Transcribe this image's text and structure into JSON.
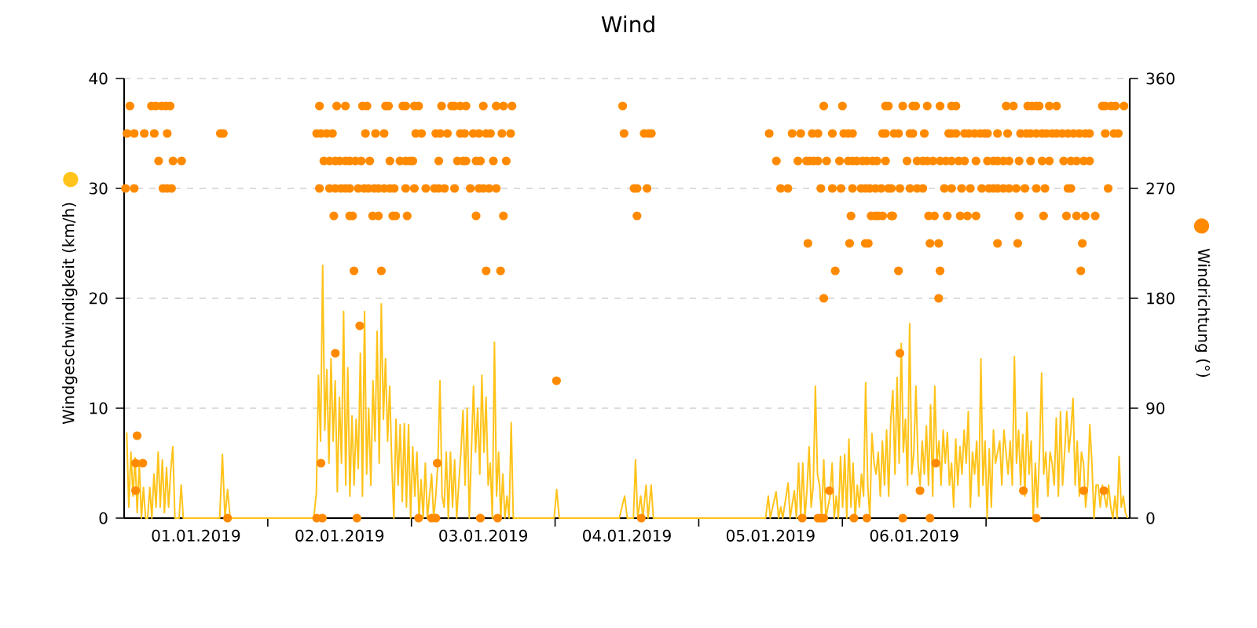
{
  "chart_data": {
    "type": "line",
    "title": "Wind",
    "ylabel": "Windgeschwindigkeit (km/h)",
    "y2label": "Windrichtung (°)",
    "xlim": [
      "2019-01-01",
      "2019-01-08"
    ],
    "xticks": [
      {
        "value": "2019-01-01T12:00",
        "label": "01.01.2019"
      },
      {
        "value": "2019-01-02",
        "label": null
      },
      {
        "value": "2019-01-02T12:00",
        "label": "02.01.2019"
      },
      {
        "value": "2019-01-03",
        "label": null
      },
      {
        "value": "2019-01-03T12:00",
        "label": "03.01.2019"
      },
      {
        "value": "2019-01-04",
        "label": null
      },
      {
        "value": "2019-01-04T12:00",
        "label": "04.01.2019"
      },
      {
        "value": "2019-01-05",
        "label": null
      },
      {
        "value": "2019-01-05T12:00",
        "label": "05.01.2019"
      },
      {
        "value": "2019-01-06",
        "label": null
      },
      {
        "value": "2019-01-06T12:00",
        "label": "06.01.2019"
      },
      {
        "value": "2019-01-07",
        "label": null
      }
    ],
    "ylim": [
      0,
      40
    ],
    "yticks": [
      0,
      10,
      20,
      30,
      40
    ],
    "y2lim": [
      0,
      360
    ],
    "y2ticks": [
      0,
      90,
      180,
      270,
      360
    ],
    "grid": "y",
    "series": [
      {
        "color": "#ffc31a",
        "marker": "none",
        "line_style": "solid",
        "x": [
          "2019-01-01T00:26",
          "2019-01-01T00:47",
          "2019-01-01T01:08",
          "2019-01-01T01:29",
          "2019-01-01T01:50",
          "2019-01-01T02:11",
          "2019-01-01T02:32",
          "2019-01-01T02:53",
          "2019-01-01T03:14",
          "2019-01-01T03:35",
          "2019-01-01T03:56",
          "2019-01-01T04:17",
          "2019-01-01T04:38",
          "2019-01-01T04:59",
          "2019-01-01T05:20",
          "2019-01-01T05:41",
          "2019-01-01T06:02",
          "2019-01-01T06:23",
          "2019-01-01T06:44",
          "2019-01-01T07:05",
          "2019-01-01T07:26",
          "2019-01-01T07:47",
          "2019-01-01T08:08",
          "2019-01-01T08:29",
          "2019-01-01T08:50",
          "2019-01-01T09:11",
          "2019-01-01T09:32",
          "2019-01-01T09:53",
          "2019-01-01T15:58",
          "2019-01-01T16:25",
          "2019-01-01T16:51",
          "2019-01-01T17:17",
          "2019-01-01T17:43",
          "2019-01-02T07:41",
          "2019-01-02T08:07",
          "2019-01-02T08:28",
          "2019-01-02T08:49",
          "2019-01-02T09:10",
          "2019-01-02T09:31",
          "2019-01-02T09:52",
          "2019-01-02T10:13",
          "2019-01-02T10:34",
          "2019-01-02T10:55",
          "2019-01-02T11:16",
          "2019-01-02T11:37",
          "2019-01-02T11:58",
          "2019-01-02T12:19",
          "2019-01-02T12:40",
          "2019-01-02T13:01",
          "2019-01-02T13:22",
          "2019-01-02T13:43",
          "2019-01-02T14:04",
          "2019-01-02T14:25",
          "2019-01-02T14:46",
          "2019-01-02T15:07",
          "2019-01-02T15:28",
          "2019-01-02T15:49",
          "2019-01-02T16:10",
          "2019-01-02T16:31",
          "2019-01-02T16:52",
          "2019-01-02T17:13",
          "2019-01-02T17:34",
          "2019-01-02T17:55",
          "2019-01-02T18:16",
          "2019-01-02T18:37",
          "2019-01-02T18:58",
          "2019-01-02T19:19",
          "2019-01-02T19:40",
          "2019-01-02T20:01",
          "2019-01-02T20:22",
          "2019-01-02T20:43",
          "2019-01-02T21:04",
          "2019-01-02T21:25",
          "2019-01-02T21:46",
          "2019-01-02T22:07",
          "2019-01-02T22:28",
          "2019-01-02T22:49",
          "2019-01-02T23:10",
          "2019-01-02T23:31",
          "2019-01-02T23:52",
          "2019-01-03T00:13",
          "2019-01-03T00:34",
          "2019-01-03T00:55",
          "2019-01-03T01:16",
          "2019-01-03T01:37",
          "2019-01-03T01:58",
          "2019-01-03T02:19",
          "2019-01-03T02:40",
          "2019-01-03T03:01",
          "2019-01-03T03:22",
          "2019-01-03T03:43",
          "2019-01-03T04:04",
          "2019-01-03T04:25",
          "2019-01-03T04:46",
          "2019-01-03T05:07",
          "2019-01-03T05:28",
          "2019-01-03T05:49",
          "2019-01-03T06:10",
          "2019-01-03T06:31",
          "2019-01-03T06:52",
          "2019-01-03T07:13",
          "2019-01-03T07:34",
          "2019-01-03T07:55",
          "2019-01-03T08:16",
          "2019-01-03T08:37",
          "2019-01-03T08:58",
          "2019-01-03T09:19",
          "2019-01-03T09:40",
          "2019-01-03T10:01",
          "2019-01-03T10:22",
          "2019-01-03T10:43",
          "2019-01-03T11:04",
          "2019-01-03T11:25",
          "2019-01-03T11:46",
          "2019-01-03T12:07",
          "2019-01-03T12:28",
          "2019-01-03T12:49",
          "2019-01-03T13:10",
          "2019-01-03T13:31",
          "2019-01-03T13:52",
          "2019-01-03T14:13",
          "2019-01-03T14:34",
          "2019-01-03T14:55",
          "2019-01-03T15:16",
          "2019-01-03T15:37",
          "2019-01-03T15:58",
          "2019-01-03T16:19",
          "2019-01-03T16:40",
          "2019-01-03T17:01",
          "2019-01-03T23:50",
          "2019-01-04T00:16",
          "2019-01-04T00:42",
          "2019-01-04T10:44",
          "2019-01-04T11:10",
          "2019-01-04T11:37",
          "2019-01-04T12:03",
          "2019-01-04T13:05",
          "2019-01-04T13:26",
          "2019-01-04T13:48",
          "2019-01-04T14:18",
          "2019-01-04T14:40",
          "2019-01-04T15:12",
          "2019-01-04T15:32",
          "2019-01-04T16:03",
          "2019-01-04T16:25",
          "2019-01-05T11:10",
          "2019-01-05T11:37",
          "2019-01-05T11:57",
          "2019-01-05T12:55",
          "2019-01-05T13:21",
          "2019-01-05T13:42",
          "2019-01-05T14:02",
          "2019-01-05T14:56",
          "2019-01-05T15:16",
          "2019-01-05T15:58",
          "2019-01-05T16:19",
          "2019-01-05T16:41",
          "2019-01-05T17:02",
          "2019-01-05T17:23",
          "2019-01-05T17:44",
          "2019-01-05T18:05",
          "2019-01-05T18:26",
          "2019-01-05T18:47",
          "2019-01-05T19:08",
          "2019-01-05T19:29",
          "2019-01-05T19:50",
          "2019-01-05T20:11",
          "2019-01-05T20:32",
          "2019-01-05T20:53",
          "2019-01-05T21:14",
          "2019-01-05T21:35",
          "2019-01-05T21:56",
          "2019-01-05T22:17",
          "2019-01-05T22:38",
          "2019-01-05T22:59",
          "2019-01-05T23:20",
          "2019-01-05T23:41",
          "2019-01-06T00:02",
          "2019-01-06T00:23",
          "2019-01-06T00:44",
          "2019-01-06T01:05",
          "2019-01-06T01:26",
          "2019-01-06T01:47",
          "2019-01-06T02:08",
          "2019-01-06T02:29",
          "2019-01-06T02:50",
          "2019-01-06T03:11",
          "2019-01-06T03:32",
          "2019-01-06T03:53",
          "2019-01-06T04:14",
          "2019-01-06T04:35",
          "2019-01-06T04:56",
          "2019-01-06T05:17",
          "2019-01-06T05:38",
          "2019-01-06T05:59",
          "2019-01-06T06:20",
          "2019-01-06T06:41",
          "2019-01-06T07:02",
          "2019-01-06T07:23",
          "2019-01-06T07:44",
          "2019-01-06T08:05",
          "2019-01-06T08:26",
          "2019-01-06T08:47",
          "2019-01-06T09:08",
          "2019-01-06T09:29",
          "2019-01-06T09:50",
          "2019-01-06T10:11",
          "2019-01-06T10:32",
          "2019-01-06T10:53",
          "2019-01-06T11:14",
          "2019-01-06T11:35",
          "2019-01-06T11:56",
          "2019-01-06T12:17",
          "2019-01-06T12:38",
          "2019-01-06T12:59",
          "2019-01-06T13:20",
          "2019-01-06T13:41",
          "2019-01-06T14:02",
          "2019-01-06T14:23",
          "2019-01-06T14:44",
          "2019-01-06T15:05",
          "2019-01-06T15:26",
          "2019-01-06T15:47",
          "2019-01-06T16:08",
          "2019-01-06T16:29",
          "2019-01-06T16:50",
          "2019-01-06T17:11",
          "2019-01-06T17:32",
          "2019-01-06T17:53",
          "2019-01-06T18:14",
          "2019-01-06T18:35",
          "2019-01-06T18:56",
          "2019-01-06T19:17",
          "2019-01-06T19:38",
          "2019-01-06T19:59",
          "2019-01-06T20:20",
          "2019-01-06T20:41",
          "2019-01-06T21:02",
          "2019-01-06T21:23",
          "2019-01-06T21:44",
          "2019-01-06T22:05",
          "2019-01-06T22:26",
          "2019-01-06T22:47",
          "2019-01-06T23:08",
          "2019-01-06T23:29",
          "2019-01-06T23:50",
          "2019-01-07T00:11",
          "2019-01-07T00:32",
          "2019-01-07T00:53",
          "2019-01-07T01:14",
          "2019-01-07T01:35",
          "2019-01-07T01:56",
          "2019-01-07T02:17",
          "2019-01-07T02:38",
          "2019-01-07T02:59",
          "2019-01-07T03:20",
          "2019-01-07T03:41",
          "2019-01-07T04:02",
          "2019-01-07T04:23",
          "2019-01-07T04:44",
          "2019-01-07T05:05",
          "2019-01-07T05:26",
          "2019-01-07T05:47",
          "2019-01-07T06:08",
          "2019-01-07T06:29",
          "2019-01-07T06:50",
          "2019-01-07T07:11",
          "2019-01-07T07:32",
          "2019-01-07T07:53",
          "2019-01-07T08:14",
          "2019-01-07T08:35",
          "2019-01-07T08:56",
          "2019-01-07T09:17",
          "2019-01-07T09:38",
          "2019-01-07T09:59",
          "2019-01-07T10:20",
          "2019-01-07T10:41",
          "2019-01-07T11:02",
          "2019-01-07T11:23",
          "2019-01-07T11:44",
          "2019-01-07T12:05",
          "2019-01-07T12:26",
          "2019-01-07T12:47",
          "2019-01-07T13:08",
          "2019-01-07T13:29",
          "2019-01-07T13:50",
          "2019-01-07T14:11",
          "2019-01-07T14:32",
          "2019-01-07T14:53",
          "2019-01-07T15:14",
          "2019-01-07T15:35",
          "2019-01-07T15:56",
          "2019-01-07T16:17",
          "2019-01-07T16:38",
          "2019-01-07T16:59",
          "2019-01-07T17:20",
          "2019-01-07T17:41",
          "2019-01-07T18:02",
          "2019-01-07T18:23",
          "2019-01-07T18:44",
          "2019-01-07T19:05",
          "2019-01-07T19:26",
          "2019-01-07T19:47",
          "2019-01-07T20:08",
          "2019-01-07T20:29",
          "2019-01-07T20:50",
          "2019-01-07T21:11",
          "2019-01-07T21:32",
          "2019-01-07T21:53",
          "2019-01-07T22:14",
          "2019-01-07T22:35",
          "2019-01-07T22:56",
          "2019-01-07T23:17",
          "2019-01-07T23:38"
        ],
        "values": [
          7.8,
          1,
          6,
          2,
          5.5,
          0.5,
          5,
          0,
          2.8,
          0,
          0,
          2.8,
          0,
          4,
          1,
          6,
          1,
          5.3,
          0.5,
          4.6,
          1,
          4.3,
          6.5,
          0,
          0,
          0,
          3,
          0,
          0,
          5.8,
          0,
          2.6,
          0,
          0,
          2.3,
          13,
          7,
          23,
          8,
          13.5,
          5,
          14.5,
          7,
          12.5,
          2.4,
          11,
          5,
          18.8,
          3,
          13.7,
          2,
          9.3,
          3,
          9,
          4.5,
          15,
          2,
          18.8,
          4,
          10,
          3,
          12.5,
          7,
          17,
          5,
          19.5,
          9,
          14.5,
          7,
          12,
          5,
          0,
          9,
          3,
          8.5,
          1.5,
          8.6,
          1,
          8.5,
          0,
          6.5,
          2,
          6,
          0,
          3.5,
          0,
          5,
          0,
          2,
          4,
          0,
          2,
          5,
          12.5,
          2,
          1,
          6,
          0,
          6,
          1,
          5.3,
          0,
          3.2,
          6,
          9.8,
          3,
          10,
          0,
          6,
          12,
          6,
          10,
          4,
          13,
          6,
          11,
          3,
          5,
          0,
          16,
          2,
          6,
          0,
          4,
          0,
          2,
          0,
          8.7,
          0,
          0,
          2.6,
          0,
          0,
          1,
          2,
          0,
          0,
          5.3,
          0,
          2,
          0,
          3,
          0,
          3,
          0,
          0,
          2,
          0,
          2.4,
          0,
          1,
          0,
          3.2,
          0,
          2.5,
          0,
          5,
          0,
          5,
          0,
          2.6,
          6.5,
          1,
          3,
          12,
          4,
          3,
          0,
          5.3,
          0,
          1,
          2,
          5,
          0,
          2,
          0,
          5.6,
          1,
          5.8,
          0,
          7.2,
          1,
          5,
          0,
          3,
          1,
          4,
          2,
          12.3,
          3,
          0,
          7.7,
          5,
          4,
          6,
          2,
          7,
          3,
          8,
          2,
          9,
          11.6,
          4,
          12.8,
          5,
          15.9,
          6,
          9,
          3,
          17.7,
          4,
          6,
          12,
          5,
          3,
          7,
          4,
          8.4,
          3,
          10.3,
          2,
          12,
          5,
          7,
          3,
          8,
          5,
          7.8,
          3,
          5,
          1,
          7.2,
          3,
          6.5,
          4,
          8,
          5,
          9.7,
          1,
          6,
          4,
          7,
          2,
          14.5,
          3,
          7,
          0,
          6.3,
          1,
          8,
          5,
          6,
          7,
          3,
          8,
          6,
          4,
          7,
          3,
          14.7,
          5,
          8,
          3,
          7.6,
          2,
          9.6,
          4,
          7,
          0,
          5,
          1,
          6,
          13.2,
          4,
          6,
          2,
          6,
          5,
          3,
          9.1,
          2,
          9.7,
          3,
          6,
          9.7,
          6,
          8,
          10.9,
          3,
          7,
          2,
          6,
          5,
          1,
          3,
          8.5,
          5,
          0,
          3,
          3,
          1,
          3,
          2,
          1,
          3,
          1,
          0,
          2,
          0,
          5.6,
          1,
          2,
          0.5,
          0
        ]
      },
      {
        "type": "scatter",
        "axis": "y2",
        "color": "#ff8a00",
        "marker": "circle",
        "x": [
          "2019-01-01T00:58",
          "2019-01-01T04:34",
          "2019-01-01T05:17",
          "2019-01-01T06:14",
          "2019-01-01T06:58",
          "2019-01-01T07:41",
          "2019-01-02T08:38",
          "2019-01-02T11:31",
          "2019-01-02T12:58",
          "2019-01-02T15:50",
          "2019-01-02T16:34",
          "2019-01-02T19:41",
          "2019-01-02T20:10",
          "2019-01-02T22:34",
          "2019-01-02T23:02",
          "2019-01-03T00:29",
          "2019-01-03T01:12",
          "2019-01-03T05:02",
          "2019-01-03T06:43",
          "2019-01-03T07:12",
          "2019-01-03T08:10",
          "2019-01-03T09:07",
          "2019-01-03T12:00",
          "2019-01-03T14:10",
          "2019-01-03T15:22",
          "2019-01-03T16:48",
          "2019-01-04T11:17",
          "2019-01-05T20:53",
          "2019-01-06T00:00",
          "2019-01-06T07:12",
          "2019-01-06T07:41",
          "2019-01-06T10:05",
          "2019-01-06T11:46",
          "2019-01-06T12:14",
          "2019-01-06T14:10",
          "2019-01-06T16:19",
          "2019-01-06T18:14",
          "2019-01-06T18:58",
          "2019-01-07T03:22",
          "2019-01-07T04:34",
          "2019-01-07T06:58",
          "2019-01-07T07:41",
          "2019-01-07T08:24",
          "2019-01-07T08:53",
          "2019-01-07T10:34",
          "2019-01-07T11:46",
          "2019-01-07T19:26",
          "2019-01-07T19:55",
          "2019-01-07T20:53",
          "2019-01-07T21:36",
          "2019-01-07T23:02",
          "2019-01-01T00:29",
          "2019-01-01T01:41",
          "2019-01-01T03:22",
          "2019-01-01T05:02",
          "2019-01-01T07:12",
          "2019-01-01T16:05",
          "2019-01-01T16:34",
          "2019-01-02T08:10",
          "2019-01-02T08:53",
          "2019-01-02T09:50",
          "2019-01-02T10:48",
          "2019-01-02T16:19",
          "2019-01-02T18:00",
          "2019-01-02T19:26",
          "2019-01-03T00:43",
          "2019-01-03T01:41",
          "2019-01-03T04:05",
          "2019-01-03T04:48",
          "2019-01-03T06:00",
          "2019-01-03T08:10",
          "2019-01-03T08:53",
          "2019-01-03T10:19",
          "2019-01-03T11:17",
          "2019-01-03T12:29",
          "2019-01-03T13:12",
          "2019-01-03T15:07",
          "2019-01-03T16:34",
          "2019-01-04T11:31",
          "2019-01-04T14:53",
          "2019-01-04T15:36",
          "2019-01-04T16:05",
          "2019-01-05T11:46",
          "2019-01-05T15:36",
          "2019-01-05T17:02",
          "2019-01-05T18:58",
          "2019-01-05T19:55",
          "2019-01-05T22:19",
          "2019-01-06T00:14",
          "2019-01-06T00:58",
          "2019-01-06T01:41",
          "2019-01-06T06:43",
          "2019-01-06T07:12",
          "2019-01-06T08:38",
          "2019-01-06T09:22",
          "2019-01-06T11:17",
          "2019-01-06T11:46",
          "2019-01-06T13:41",
          "2019-01-06T17:46",
          "2019-01-06T18:14",
          "2019-01-06T18:58",
          "2019-01-06T20:24",
          "2019-01-06T21:07",
          "2019-01-06T22:05",
          "2019-01-06T23:02",
          "2019-01-06T23:46",
          "2019-01-07T00:14",
          "2019-01-07T01:55",
          "2019-01-07T03:36",
          "2019-01-07T05:46",
          "2019-01-07T06:43",
          "2019-01-07T07:26",
          "2019-01-07T08:24",
          "2019-01-07T09:22",
          "2019-01-07T10:05",
          "2019-01-07T11:02",
          "2019-01-07T11:46",
          "2019-01-07T12:43",
          "2019-01-07T13:41",
          "2019-01-07T14:38",
          "2019-01-07T15:36",
          "2019-01-07T16:34",
          "2019-01-07T17:17",
          "2019-01-07T19:55",
          "2019-01-07T21:22",
          "2019-01-07T22:05",
          "2019-01-01T05:46",
          "2019-01-01T08:10",
          "2019-01-01T09:36",
          "2019-01-02T09:22",
          "2019-01-02T10:19",
          "2019-01-02T11:17",
          "2019-01-02T12:00",
          "2019-01-02T12:58",
          "2019-01-02T13:41",
          "2019-01-02T14:38",
          "2019-01-02T15:36",
          "2019-01-02T17:02",
          "2019-01-02T20:24",
          "2019-01-02T22:05",
          "2019-01-02T23:02",
          "2019-01-02T23:46",
          "2019-01-03T00:14",
          "2019-01-03T04:34",
          "2019-01-03T07:41",
          "2019-01-03T08:38",
          "2019-01-03T09:07",
          "2019-01-03T10:48",
          "2019-01-03T11:31",
          "2019-01-03T13:41",
          "2019-01-03T15:50",
          "2019-01-05T12:58",
          "2019-01-05T16:34",
          "2019-01-05T18:00",
          "2019-01-05T18:29",
          "2019-01-05T19:12",
          "2019-01-05T19:55",
          "2019-01-05T21:22",
          "2019-01-05T23:31",
          "2019-01-06T00:58",
          "2019-01-06T01:41",
          "2019-01-06T02:24",
          "2019-01-06T03:22",
          "2019-01-06T04:05",
          "2019-01-06T05:02",
          "2019-01-06T05:46",
          "2019-01-06T07:12",
          "2019-01-06T10:48",
          "2019-01-06T12:29",
          "2019-01-06T13:26",
          "2019-01-06T14:10",
          "2019-01-06T15:07",
          "2019-01-06T16:19",
          "2019-01-06T17:17",
          "2019-01-06T18:14",
          "2019-01-06T19:26",
          "2019-01-06T20:24",
          "2019-01-06T22:19",
          "2019-01-07T00:14",
          "2019-01-07T01:12",
          "2019-01-07T01:55",
          "2019-01-07T02:53",
          "2019-01-07T03:50",
          "2019-01-07T05:31",
          "2019-01-07T07:26",
          "2019-01-07T09:22",
          "2019-01-07T10:34",
          "2019-01-07T12:58",
          "2019-01-07T14:10",
          "2019-01-07T15:07",
          "2019-01-07T16:19",
          "2019-01-07T17:17",
          "2019-01-01T00:14",
          "2019-01-01T01:41",
          "2019-01-01T06:29",
          "2019-01-01T07:12",
          "2019-01-01T07:55",
          "2019-01-02T08:38",
          "2019-01-02T10:19",
          "2019-01-02T11:17",
          "2019-01-02T12:14",
          "2019-01-02T12:58",
          "2019-01-02T13:41",
          "2019-01-02T15:07",
          "2019-01-02T16:05",
          "2019-01-02T16:48",
          "2019-01-02T17:46",
          "2019-01-02T18:29",
          "2019-01-02T19:26",
          "2019-01-02T20:24",
          "2019-01-02T21:07",
          "2019-01-02T23:02",
          "2019-01-03T00:29",
          "2019-01-03T02:24",
          "2019-01-03T03:50",
          "2019-01-03T04:34",
          "2019-01-03T05:31",
          "2019-01-03T07:12",
          "2019-01-03T09:50",
          "2019-01-03T11:17",
          "2019-01-03T12:00",
          "2019-01-03T12:58",
          "2019-01-03T14:10",
          "2019-01-04T13:12",
          "2019-01-04T13:41",
          "2019-01-04T15:22",
          "2019-01-05T13:41",
          "2019-01-05T14:53",
          "2019-01-05T20:24",
          "2019-01-05T22:19",
          "2019-01-05T23:46",
          "2019-01-06T01:41",
          "2019-01-06T03:07",
          "2019-01-06T03:50",
          "2019-01-06T04:34",
          "2019-01-06T05:31",
          "2019-01-06T06:29",
          "2019-01-06T07:41",
          "2019-01-06T08:10",
          "2019-01-06T09:36",
          "2019-01-06T11:17",
          "2019-01-06T12:29",
          "2019-01-06T13:26",
          "2019-01-06T17:02",
          "2019-01-06T18:14",
          "2019-01-06T19:55",
          "2019-01-06T21:22",
          "2019-01-06T23:17",
          "2019-01-07T00:29",
          "2019-01-07T01:12",
          "2019-01-07T01:55",
          "2019-01-07T02:53",
          "2019-01-07T03:50",
          "2019-01-07T05:02",
          "2019-01-07T06:29",
          "2019-01-07T08:24",
          "2019-01-07T09:50",
          "2019-01-07T13:41",
          "2019-01-07T14:10",
          "2019-01-07T20:24",
          "2019-01-02T11:02",
          "2019-01-02T13:41",
          "2019-01-02T14:10",
          "2019-01-02T17:31",
          "2019-01-02T18:29",
          "2019-01-02T20:53",
          "2019-01-02T21:22",
          "2019-01-02T23:17",
          "2019-01-03T10:48",
          "2019-01-03T15:22",
          "2019-01-04T13:41",
          "2019-01-06T01:26",
          "2019-01-06T04:48",
          "2019-01-06T05:31",
          "2019-01-06T06:00",
          "2019-01-06T06:43",
          "2019-01-06T08:10",
          "2019-01-06T08:24",
          "2019-01-06T14:24",
          "2019-01-06T15:22",
          "2019-01-06T17:31",
          "2019-01-06T19:41",
          "2019-01-06T20:53",
          "2019-01-06T22:19",
          "2019-01-07T05:31",
          "2019-01-07T09:36",
          "2019-01-07T13:26",
          "2019-01-07T15:07",
          "2019-01-07T16:34",
          "2019-01-07T18:14",
          "2019-01-05T18:14",
          "2019-01-06T01:12",
          "2019-01-06T03:50",
          "2019-01-06T04:19",
          "2019-01-06T14:38",
          "2019-01-06T16:05",
          "2019-01-07T01:55",
          "2019-01-07T05:17",
          "2019-01-07T16:05",
          "2019-01-02T14:24",
          "2019-01-02T18:58",
          "2019-01-03T12:29",
          "2019-01-03T14:53",
          "2019-01-05T22:48",
          "2019-01-06T09:22",
          "2019-01-06T16:19",
          "2019-01-07T15:50",
          "2019-01-05T20:53",
          "2019-01-06T16:05",
          "2019-01-02T15:22",
          "2019-01-02T11:17",
          "2019-01-06T09:36",
          "2019-01-04T00:14",
          "2019-01-01T02:10",
          "2019-01-01T01:55",
          "2019-01-01T03:07",
          "2019-01-02T08:53",
          "2019-01-03T04:19",
          "2019-01-06T15:36",
          "2019-01-01T01:55",
          "2019-01-05T21:50",
          "2019-01-06T12:58",
          "2019-01-07T06:14",
          "2019-01-07T16:19",
          "2019-01-07T19:41",
          "2019-01-01T17:17",
          "2019-01-02T08:10",
          "2019-01-02T09:07",
          "2019-01-02T14:53",
          "2019-01-03T01:12",
          "2019-01-03T03:22",
          "2019-01-03T04:05",
          "2019-01-03T11:31",
          "2019-01-03T14:24",
          "2019-01-04T14:24",
          "2019-01-05T17:17",
          "2019-01-05T19:55",
          "2019-01-05T20:24",
          "2019-01-05T20:53",
          "2019-01-06T01:55",
          "2019-01-06T04:05",
          "2019-01-06T10:05",
          "2019-01-06T14:38",
          "2019-01-07T08:24"
        ],
        "values": [
          337.5,
          337.5,
          337.5,
          337.5,
          337.5,
          337.5,
          337.5,
          337.5,
          337.5,
          337.5,
          337.5,
          337.5,
          337.5,
          337.5,
          337.5,
          337.5,
          337.5,
          337.5,
          337.5,
          337.5,
          337.5,
          337.5,
          337.5,
          337.5,
          337.5,
          337.5,
          337.5,
          337.5,
          337.5,
          337.5,
          337.5,
          337.5,
          337.5,
          337.5,
          337.5,
          337.5,
          337.5,
          337.5,
          337.5,
          337.5,
          337.5,
          337.5,
          337.5,
          337.5,
          337.5,
          337.5,
          337.5,
          337.5,
          337.5,
          337.5,
          337.5,
          315,
          315,
          315,
          315,
          315,
          315,
          315,
          315,
          315,
          315,
          315,
          315,
          315,
          315,
          315,
          315,
          315,
          315,
          315,
          315,
          315,
          315,
          315,
          315,
          315,
          315,
          315,
          315,
          315,
          315,
          315,
          315,
          315,
          315,
          315,
          315,
          315,
          315,
          315,
          315,
          315,
          315,
          315,
          315,
          315,
          315,
          315,
          315,
          315,
          315,
          315,
          315,
          315,
          315,
          315,
          315,
          315,
          315,
          315,
          315,
          315,
          315,
          315,
          315,
          315,
          315,
          315,
          315,
          315,
          315,
          315,
          315,
          315,
          315,
          315,
          292.5,
          292.5,
          292.5,
          292.5,
          292.5,
          292.5,
          292.5,
          292.5,
          292.5,
          292.5,
          292.5,
          292.5,
          292.5,
          292.5,
          292.5,
          292.5,
          292.5,
          292.5,
          292.5,
          292.5,
          292.5,
          292.5,
          292.5,
          292.5,
          292.5,
          292.5,
          292.5,
          292.5,
          292.5,
          292.5,
          292.5,
          292.5,
          292.5,
          292.5,
          292.5,
          292.5,
          292.5,
          292.5,
          292.5,
          292.5,
          292.5,
          292.5,
          292.5,
          292.5,
          292.5,
          292.5,
          292.5,
          292.5,
          292.5,
          292.5,
          292.5,
          292.5,
          292.5,
          292.5,
          292.5,
          292.5,
          292.5,
          292.5,
          292.5,
          292.5,
          292.5,
          292.5,
          292.5,
          292.5,
          292.5,
          292.5,
          270,
          270,
          270,
          270,
          270,
          270,
          270,
          270,
          270,
          270,
          270,
          270,
          270,
          270,
          270,
          270,
          270,
          270,
          270,
          270,
          270,
          270,
          270,
          270,
          270,
          270,
          270,
          270,
          270,
          270,
          270,
          270,
          270,
          270,
          270,
          270,
          270,
          270,
          270,
          270,
          270,
          270,
          270,
          270,
          270,
          270,
          270,
          270,
          270,
          270,
          270,
          270,
          270,
          270,
          270,
          270,
          270,
          270,
          270,
          270,
          270,
          270,
          270,
          270,
          270,
          270,
          270,
          270,
          247.5,
          247.5,
          247.5,
          247.5,
          247.5,
          247.5,
          247.5,
          247.5,
          247.5,
          247.5,
          247.5,
          247.5,
          247.5,
          247.5,
          247.5,
          247.5,
          247.5,
          247.5,
          247.5,
          247.5,
          247.5,
          247.5,
          247.5,
          247.5,
          247.5,
          247.5,
          247.5,
          247.5,
          247.5,
          247.5,
          225,
          225,
          225,
          225,
          225,
          225,
          225,
          225,
          225,
          202.5,
          202.5,
          202.5,
          202.5,
          202.5,
          202.5,
          202.5,
          202.5,
          180,
          180,
          157.5,
          135,
          135,
          112.5,
          67.5,
          45,
          45,
          45,
          45,
          45,
          22.5,
          22.5,
          22.5,
          22.5,
          22.5,
          22.5,
          0,
          0,
          0,
          0,
          0,
          0,
          0,
          0,
          0,
          0,
          0,
          0,
          0,
          0,
          0,
          0,
          0,
          0,
          0
        ]
      }
    ]
  }
}
